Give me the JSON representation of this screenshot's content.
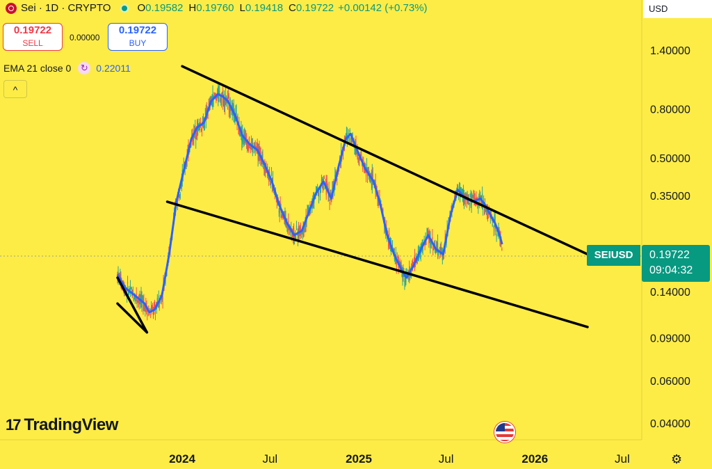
{
  "header": {
    "symbol_line": "Sei · 1D · CRYPTO",
    "o_label": "O",
    "o_value": "0.19582",
    "h_label": "H",
    "h_value": "0.19760",
    "l_label": "L",
    "l_value": "0.19418",
    "c_label": "C",
    "c_value": "0.19722",
    "change": "+0.00142 (+0.73%)"
  },
  "trade": {
    "sell_price": "0.19722",
    "sell_label": "SELL",
    "spread": "0.00000",
    "buy_price": "0.19722",
    "buy_label": "BUY"
  },
  "indicator": {
    "label": "EMA 21 close 0",
    "value": "0.22011",
    "collapse": "^"
  },
  "currency": "USD",
  "symbol_tag": "SEIUSD",
  "last_price": "0.19722",
  "countdown": "09:04:32",
  "brand": "TradingView",
  "colors": {
    "background": "#fdec46",
    "ema": "#2962ff",
    "up": "#089981",
    "down": "#f23645",
    "trendline": "#000000"
  },
  "chart_data": {
    "type": "line",
    "y_scale": "log",
    "y_ticks": [
      1.4,
      0.8,
      0.5,
      0.35,
      0.14,
      0.09,
      0.06,
      0.04
    ],
    "y_tick_labels": [
      "1.40000",
      "0.80000",
      "0.50000",
      "0.35000",
      "0.14000",
      "0.09000",
      "0.06000",
      "0.04000"
    ],
    "x_tick_labels": [
      "2024",
      "Jul",
      "2025",
      "Jul",
      "2026",
      "Jul"
    ],
    "x_ticks": [
      "2024-01-01",
      "2024-07-01",
      "2025-01-01",
      "2025-07-01",
      "2026-01-01",
      "2026-07-01"
    ],
    "series": [
      {
        "name": "EMA 21 close 0",
        "x": [
          "2023-08-20",
          "2023-09-05",
          "2023-09-25",
          "2023-10-15",
          "2023-10-25",
          "2023-11-05",
          "2023-11-20",
          "2023-12-05",
          "2023-12-20",
          "2024-01-05",
          "2024-01-20",
          "2024-02-01",
          "2024-02-15",
          "2024-03-01",
          "2024-03-15",
          "2024-03-25",
          "2024-04-05",
          "2024-04-20",
          "2024-05-05",
          "2024-05-20",
          "2024-06-05",
          "2024-06-20",
          "2024-07-05",
          "2024-07-20",
          "2024-08-05",
          "2024-08-20",
          "2024-09-05",
          "2024-09-20",
          "2024-10-05",
          "2024-10-20",
          "2024-11-05",
          "2024-11-20",
          "2024-12-05",
          "2024-12-15",
          "2025-01-01",
          "2025-01-15",
          "2025-02-01",
          "2025-02-15",
          "2025-03-01",
          "2025-03-15",
          "2025-04-01",
          "2025-04-10",
          "2025-04-25",
          "2025-05-10",
          "2025-05-25",
          "2025-06-10",
          "2025-06-25",
          "2025-07-10",
          "2025-07-25",
          "2025-08-10",
          "2025-08-25",
          "2025-09-10",
          "2025-09-20",
          "2025-10-01",
          "2025-10-10",
          "2025-10-20",
          "2025-10-25"
        ],
        "values": [
          0.165,
          0.145,
          0.135,
          0.125,
          0.115,
          0.118,
          0.135,
          0.2,
          0.33,
          0.45,
          0.6,
          0.67,
          0.7,
          0.86,
          0.92,
          0.9,
          0.86,
          0.75,
          0.62,
          0.57,
          0.54,
          0.47,
          0.4,
          0.32,
          0.27,
          0.24,
          0.25,
          0.3,
          0.36,
          0.4,
          0.34,
          0.46,
          0.6,
          0.63,
          0.52,
          0.45,
          0.4,
          0.32,
          0.24,
          0.2,
          0.17,
          0.16,
          0.18,
          0.21,
          0.24,
          0.21,
          0.2,
          0.29,
          0.37,
          0.34,
          0.33,
          0.34,
          0.32,
          0.29,
          0.27,
          0.24,
          0.22
        ]
      },
      {
        "name": "",
        "x": [
          "2023-08-20",
          "2023-10-20"
        ],
        "values": [
          0.16,
          0.095
        ]
      },
      {
        "name": "",
        "x": [
          "2023-08-20",
          "2023-10-20"
        ],
        "values": [
          0.125,
          0.095
        ]
      },
      {
        "name": "",
        "x": [
          "2024-01-01",
          "2026-04-20"
        ],
        "values": [
          1.2,
          0.2
        ]
      },
      {
        "name": "",
        "x": [
          "2023-12-01",
          "2026-04-20"
        ],
        "values": [
          0.33,
          0.1
        ]
      }
    ]
  }
}
